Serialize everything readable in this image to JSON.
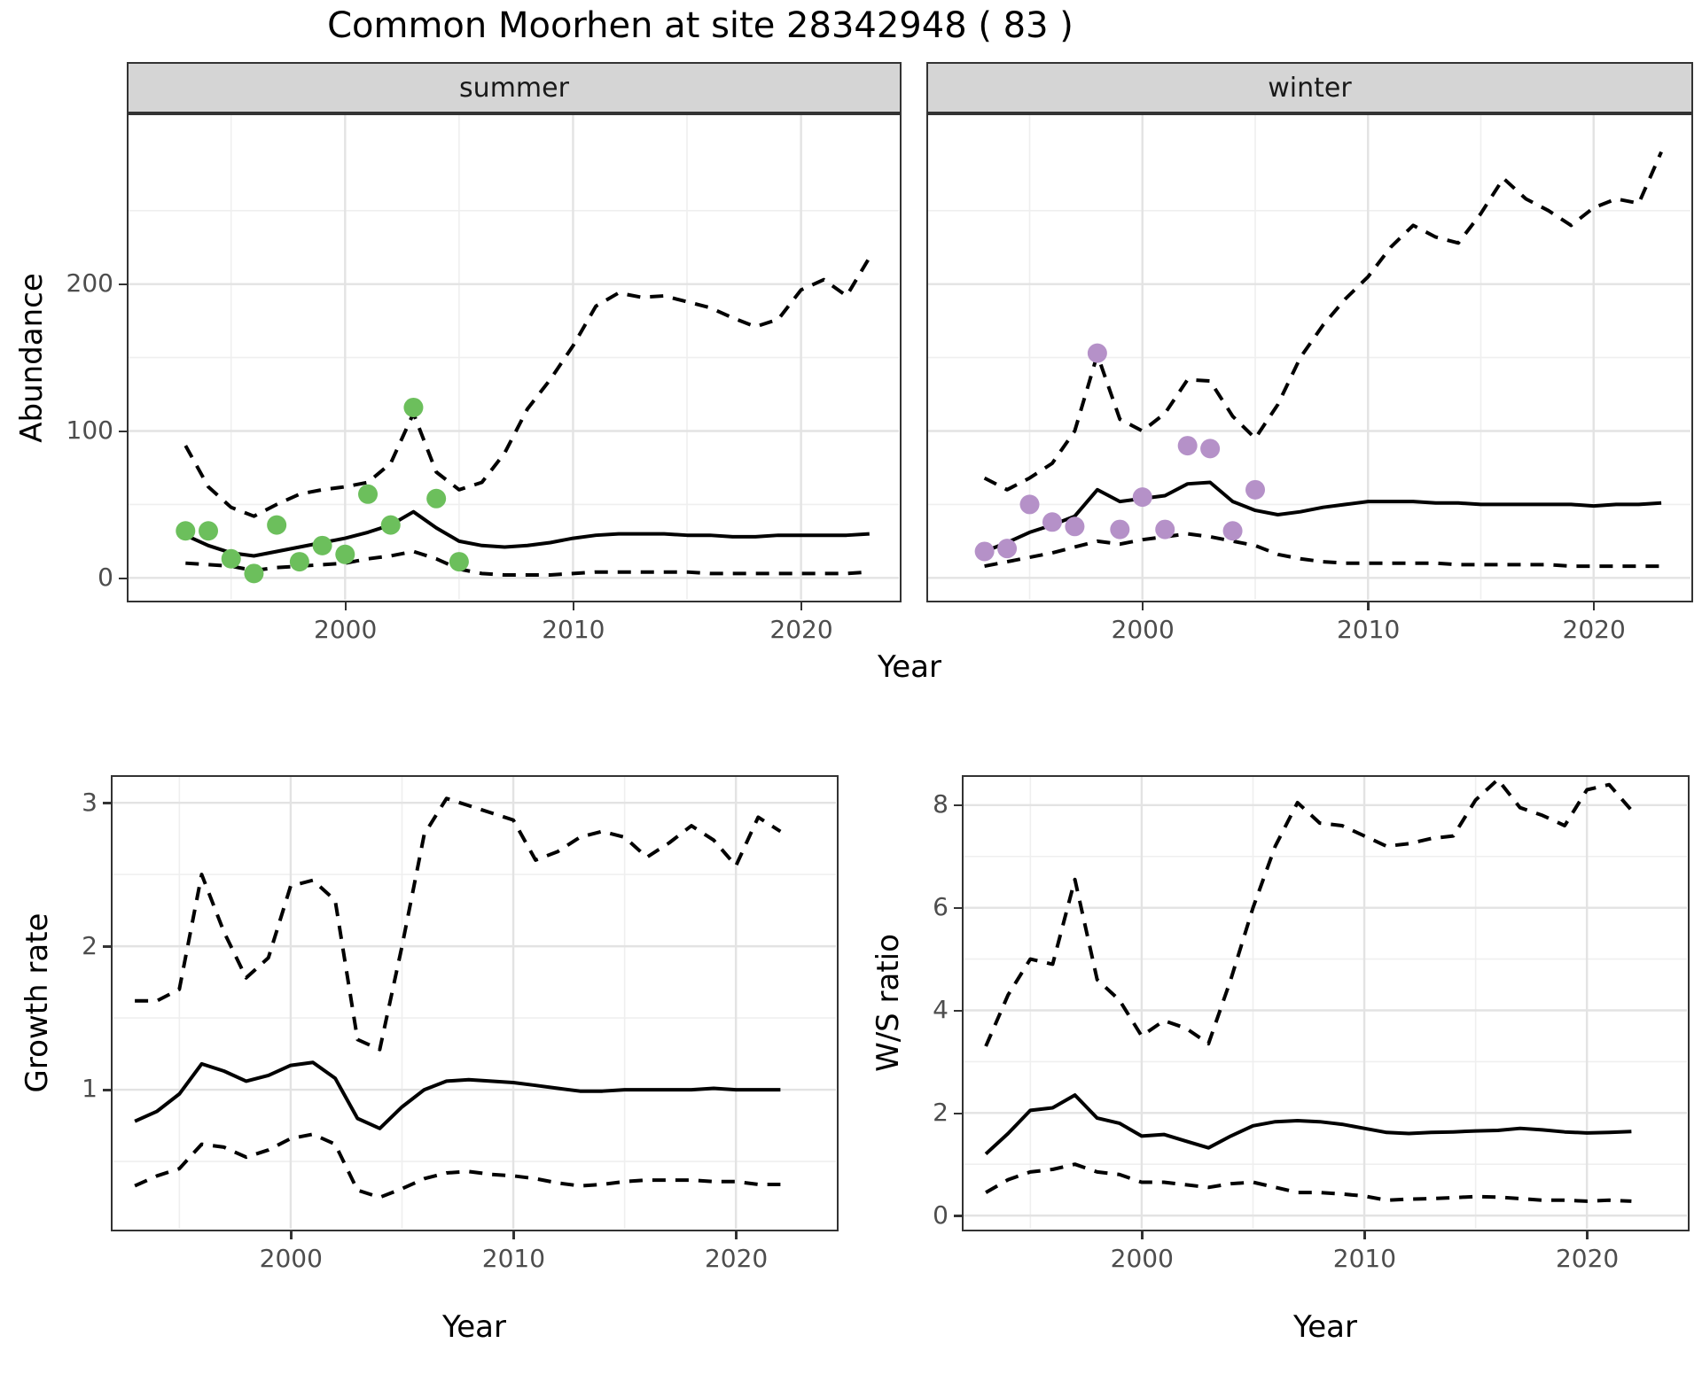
{
  "title": "Common Moorhen at site 28342948 ( 83 )",
  "facets": {
    "summer_label": "summer",
    "winter_label": "winter"
  },
  "axis_titles": {
    "abundance": "Abundance",
    "year_top": "Year",
    "growth": "Growth rate",
    "ws": "W/S ratio",
    "year_growth": "Year",
    "year_ws": "Year"
  },
  "colors": {
    "summer_points": "#6cbf5c",
    "winter_points": "#b591c8",
    "line": "#000000",
    "strip_bg": "#d5d5d5",
    "grid_major": "#e3e3e3",
    "grid_minor": "#efefef",
    "tick_label": "#4d4d4d"
  },
  "chart_data": [
    {
      "id": "abundance-summer",
      "type": "line",
      "facet": "summer",
      "title": "",
      "xlabel": "Year",
      "ylabel": "Abundance",
      "xlim": [
        1990.5,
        2024.3
      ],
      "ylim": [
        -15,
        315
      ],
      "xticks": [
        2000,
        2010,
        2020
      ],
      "xticks_minor": [
        1995,
        2005,
        2015
      ],
      "yticks": [
        0,
        100,
        200
      ],
      "yticks_minor": [
        50,
        150,
        250
      ],
      "grid": true,
      "legend_position": "none",
      "years": [
        1993,
        1994,
        1995,
        1996,
        1997,
        1998,
        1999,
        2000,
        2001,
        2002,
        2003,
        2004,
        2005,
        2006,
        2007,
        2008,
        2009,
        2010,
        2011,
        2012,
        2013,
        2014,
        2015,
        2016,
        2017,
        2018,
        2019,
        2020,
        2021,
        2022,
        2023
      ],
      "series": [
        {
          "name": "upper_ci",
          "style": "dashed",
          "values": [
            90,
            62,
            48,
            42,
            50,
            57,
            60,
            62,
            65,
            78,
            112,
            72,
            60,
            65,
            85,
            115,
            135,
            158,
            185,
            194,
            191,
            192,
            188,
            184,
            177,
            171,
            176,
            196,
            203,
            192,
            218
          ]
        },
        {
          "name": "lower_ci",
          "style": "dashed",
          "values": [
            10,
            9,
            8,
            5,
            7,
            8,
            9,
            10,
            13,
            15,
            18,
            13,
            6,
            3,
            2,
            2,
            2,
            3,
            4,
            4,
            4,
            4,
            4,
            3,
            3,
            3,
            3,
            3,
            3,
            3,
            4
          ]
        },
        {
          "name": "fit",
          "style": "solid",
          "values": [
            29,
            22,
            17,
            15,
            18,
            21,
            24,
            27,
            31,
            36,
            45,
            34,
            25,
            22,
            21,
            22,
            24,
            27,
            29,
            30,
            30,
            30,
            29,
            29,
            28,
            28,
            29,
            29,
            29,
            29,
            30
          ]
        },
        {
          "name": "observations",
          "style": "points",
          "color_key": "summer_points",
          "x": [
            1993,
            1994,
            1995,
            1996,
            1997,
            1998,
            1999,
            2000,
            2001,
            2002,
            2003,
            2004,
            2005
          ],
          "values": [
            32,
            32,
            13,
            3,
            36,
            11,
            22,
            16,
            57,
            36,
            116,
            54,
            11
          ]
        }
      ]
    },
    {
      "id": "abundance-winter",
      "type": "line",
      "facet": "winter",
      "title": "",
      "xlabel": "Year",
      "ylabel": "Abundance",
      "xlim": [
        1990.5,
        2024.3
      ],
      "ylim": [
        -15,
        315
      ],
      "xticks": [
        2000,
        2010,
        2020
      ],
      "xticks_minor": [
        1995,
        2005,
        2015
      ],
      "yticks": [
        0,
        100,
        200
      ],
      "yticks_minor": [
        50,
        150,
        250
      ],
      "grid": true,
      "legend_position": "none",
      "years": [
        1993,
        1994,
        1995,
        1996,
        1997,
        1998,
        1999,
        2000,
        2001,
        2002,
        2003,
        2004,
        2005,
        2006,
        2007,
        2008,
        2009,
        2010,
        2011,
        2012,
        2013,
        2014,
        2015,
        2016,
        2017,
        2018,
        2019,
        2020,
        2021,
        2022,
        2023
      ],
      "series": [
        {
          "name": "upper_ci",
          "style": "dashed",
          "values": [
            68,
            60,
            68,
            78,
            100,
            152,
            108,
            100,
            112,
            135,
            134,
            110,
            95,
            118,
            150,
            172,
            190,
            205,
            225,
            240,
            232,
            228,
            248,
            272,
            258,
            250,
            240,
            252,
            258,
            255,
            290
          ]
        },
        {
          "name": "lower_ci",
          "style": "dashed",
          "values": [
            8,
            11,
            14,
            17,
            21,
            25,
            23,
            26,
            28,
            30,
            28,
            25,
            22,
            16,
            13,
            11,
            10,
            10,
            10,
            10,
            10,
            9,
            9,
            9,
            9,
            9,
            8,
            8,
            8,
            8,
            8
          ]
        },
        {
          "name": "fit",
          "style": "solid",
          "values": [
            18,
            24,
            31,
            36,
            42,
            60,
            52,
            54,
            56,
            64,
            65,
            52,
            46,
            43,
            45,
            48,
            50,
            52,
            52,
            52,
            51,
            51,
            50,
            50,
            50,
            50,
            50,
            49,
            50,
            50,
            51
          ]
        },
        {
          "name": "observations",
          "style": "points",
          "color_key": "winter_points",
          "x": [
            1993,
            1994,
            1995,
            1996,
            1997,
            1998,
            1999,
            2000,
            2001,
            2002,
            2003,
            2004,
            2005
          ],
          "values": [
            18,
            20,
            50,
            38,
            35,
            153,
            33,
            55,
            33,
            90,
            88,
            32,
            60
          ]
        }
      ]
    },
    {
      "id": "growth",
      "type": "line",
      "title": "",
      "xlabel": "Year",
      "ylabel": "Growth rate",
      "xlim": [
        1992,
        2024.5
      ],
      "ylim": [
        0.03,
        3.18
      ],
      "xticks": [
        2000,
        2010,
        2020
      ],
      "xticks_minor": [
        1995,
        2005,
        2015
      ],
      "yticks": [
        1,
        2,
        3
      ],
      "yticks_minor": [
        0.5,
        1.5,
        2.5
      ],
      "grid": true,
      "legend_position": "none",
      "years": [
        1993,
        1994,
        1995,
        1996,
        1997,
        1998,
        1999,
        2000,
        2001,
        2002,
        2003,
        2004,
        2005,
        2006,
        2007,
        2008,
        2009,
        2010,
        2011,
        2012,
        2013,
        2014,
        2015,
        2016,
        2017,
        2018,
        2019,
        2020,
        2021,
        2022
      ],
      "series": [
        {
          "name": "upper_ci",
          "style": "dashed",
          "values": [
            1.62,
            1.62,
            1.7,
            2.5,
            2.1,
            1.78,
            1.92,
            2.42,
            2.46,
            2.32,
            1.35,
            1.28,
            2.0,
            2.78,
            3.03,
            2.98,
            2.93,
            2.88,
            2.6,
            2.66,
            2.76,
            2.8,
            2.76,
            2.62,
            2.72,
            2.84,
            2.74,
            2.56,
            2.9,
            2.8
          ]
        },
        {
          "name": "lower_ci",
          "style": "dashed",
          "values": [
            0.33,
            0.4,
            0.45,
            0.62,
            0.6,
            0.53,
            0.58,
            0.66,
            0.69,
            0.62,
            0.3,
            0.25,
            0.31,
            0.38,
            0.42,
            0.43,
            0.41,
            0.4,
            0.38,
            0.35,
            0.33,
            0.34,
            0.36,
            0.37,
            0.37,
            0.37,
            0.36,
            0.36,
            0.34,
            0.34
          ]
        },
        {
          "name": "fit",
          "style": "solid",
          "values": [
            0.78,
            0.85,
            0.97,
            1.18,
            1.13,
            1.06,
            1.1,
            1.17,
            1.19,
            1.08,
            0.8,
            0.73,
            0.88,
            1.0,
            1.06,
            1.07,
            1.06,
            1.05,
            1.03,
            1.01,
            0.99,
            0.99,
            1.0,
            1.0,
            1.0,
            1.0,
            1.01,
            1.0,
            1.0,
            1.0
          ]
        }
      ]
    },
    {
      "id": "ws",
      "type": "line",
      "title": "",
      "xlabel": "Year",
      "ylabel": "W/S ratio",
      "xlim": [
        1992,
        2024.5
      ],
      "ylim": [
        -0.26,
        8.55
      ],
      "xticks": [
        2000,
        2010,
        2020
      ],
      "xticks_minor": [
        1995,
        2005,
        2015
      ],
      "yticks": [
        0,
        2,
        4,
        6,
        8
      ],
      "yticks_minor": [
        1,
        3,
        5,
        7
      ],
      "grid": true,
      "legend_position": "none",
      "years": [
        1993,
        1994,
        1995,
        1996,
        1997,
        1998,
        1999,
        2000,
        2001,
        2002,
        2003,
        2004,
        2005,
        2006,
        2007,
        2008,
        2009,
        2010,
        2011,
        2012,
        2013,
        2014,
        2015,
        2016,
        2017,
        2018,
        2019,
        2020,
        2021,
        2022
      ],
      "series": [
        {
          "name": "upper_ci",
          "style": "dashed",
          "values": [
            3.3,
            4.3,
            5.0,
            4.9,
            6.55,
            4.6,
            4.2,
            3.5,
            3.8,
            3.65,
            3.35,
            4.6,
            6.0,
            7.2,
            8.05,
            7.65,
            7.6,
            7.4,
            7.2,
            7.25,
            7.35,
            7.4,
            8.1,
            8.5,
            7.95,
            7.8,
            7.6,
            8.3,
            8.4,
            7.9
          ]
        },
        {
          "name": "lower_ci",
          "style": "dashed",
          "values": [
            0.45,
            0.7,
            0.85,
            0.9,
            1.0,
            0.85,
            0.8,
            0.65,
            0.65,
            0.6,
            0.55,
            0.62,
            0.65,
            0.55,
            0.45,
            0.45,
            0.42,
            0.38,
            0.3,
            0.32,
            0.33,
            0.35,
            0.37,
            0.36,
            0.33,
            0.3,
            0.3,
            0.28,
            0.3,
            0.28
          ]
        },
        {
          "name": "fit",
          "style": "solid",
          "values": [
            1.2,
            1.6,
            2.05,
            2.1,
            2.35,
            1.9,
            1.8,
            1.55,
            1.58,
            1.45,
            1.32,
            1.55,
            1.75,
            1.83,
            1.85,
            1.83,
            1.78,
            1.7,
            1.62,
            1.6,
            1.62,
            1.63,
            1.65,
            1.66,
            1.7,
            1.67,
            1.63,
            1.61,
            1.62,
            1.64
          ]
        }
      ]
    }
  ]
}
